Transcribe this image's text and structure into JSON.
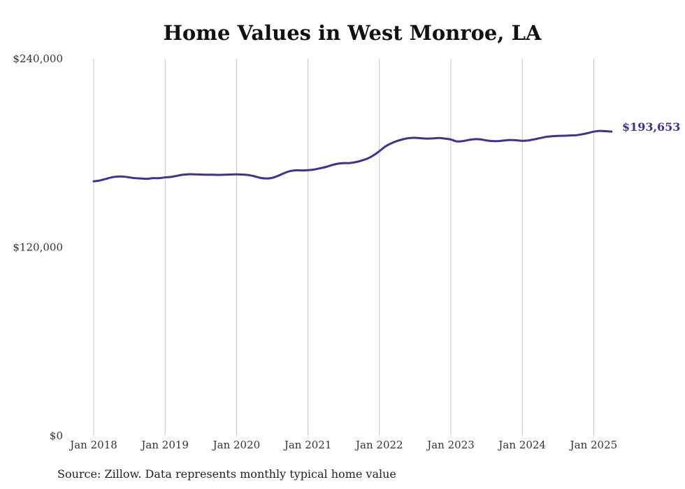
{
  "chart_data": {
    "type": "line",
    "title": "Home Values in West Monroe, LA",
    "xlabel": "",
    "ylabel": "",
    "ylim": [
      0,
      240000
    ],
    "yticks": [
      "$0",
      "$120,000",
      "$240,000"
    ],
    "ytick_values": [
      0,
      120000,
      240000
    ],
    "xticks": [
      "Jan 2018",
      "Jan 2019",
      "Jan 2020",
      "Jan 2021",
      "Jan 2022",
      "Jan 2023",
      "Jan 2024",
      "Jan 2025"
    ],
    "grid": "vertical",
    "line_color": "#3c3494",
    "end_label": "$193,653",
    "series": [
      {
        "x": [
          "2018-01",
          "2018-02",
          "2018-03",
          "2018-04",
          "2018-05",
          "2018-06",
          "2018-07",
          "2018-08",
          "2018-09",
          "2018-10",
          "2018-11",
          "2018-12",
          "2019-01",
          "2019-02",
          "2019-03",
          "2019-04",
          "2019-05",
          "2019-06",
          "2019-07",
          "2019-08",
          "2019-09",
          "2019-10",
          "2019-11",
          "2019-12",
          "2020-01",
          "2020-02",
          "2020-03",
          "2020-04",
          "2020-05",
          "2020-06",
          "2020-07",
          "2020-08",
          "2020-09",
          "2020-10",
          "2020-11",
          "2020-12",
          "2021-01",
          "2021-02",
          "2021-03",
          "2021-04",
          "2021-05",
          "2021-06",
          "2021-07",
          "2021-08",
          "2021-09",
          "2021-10",
          "2021-11",
          "2021-12",
          "2022-01",
          "2022-02",
          "2022-03",
          "2022-04",
          "2022-05",
          "2022-06",
          "2022-07",
          "2022-08",
          "2022-09",
          "2022-10",
          "2022-11",
          "2022-12",
          "2023-01",
          "2023-02",
          "2023-03",
          "2023-04",
          "2023-05",
          "2023-06",
          "2023-07",
          "2023-08",
          "2023-09",
          "2023-10",
          "2023-11",
          "2023-12",
          "2024-01",
          "2024-02",
          "2024-03",
          "2024-04",
          "2024-05",
          "2024-06",
          "2024-07",
          "2024-08",
          "2024-09",
          "2024-10",
          "2024-11",
          "2024-12",
          "2025-01",
          "2025-02",
          "2025-03",
          "2025-04"
        ],
        "values": [
          162000,
          162500,
          163500,
          164500,
          165000,
          165000,
          164500,
          164000,
          163800,
          163600,
          164000,
          164000,
          164500,
          164800,
          165500,
          166200,
          166500,
          166400,
          166300,
          166200,
          166200,
          166100,
          166200,
          166300,
          166400,
          166300,
          166000,
          165200,
          164200,
          163800,
          164200,
          165500,
          167200,
          168500,
          169000,
          168900,
          169100,
          169500,
          170300,
          171100,
          172300,
          173200,
          173600,
          173600,
          174200,
          175200,
          176500,
          178500,
          181200,
          184200,
          186200,
          187700,
          188800,
          189500,
          189700,
          189400,
          189200,
          189300,
          189600,
          189200,
          188600,
          187400,
          187600,
          188300,
          188800,
          188700,
          188000,
          187600,
          187600,
          188000,
          188300,
          188100,
          187800,
          188000,
          188700,
          189500,
          190300,
          190700,
          190900,
          191000,
          191200,
          191300,
          191900,
          192700,
          193600,
          194100,
          193900,
          193653
        ]
      }
    ]
  },
  "source": "Source: Zillow. Data represents monthly typical home value"
}
